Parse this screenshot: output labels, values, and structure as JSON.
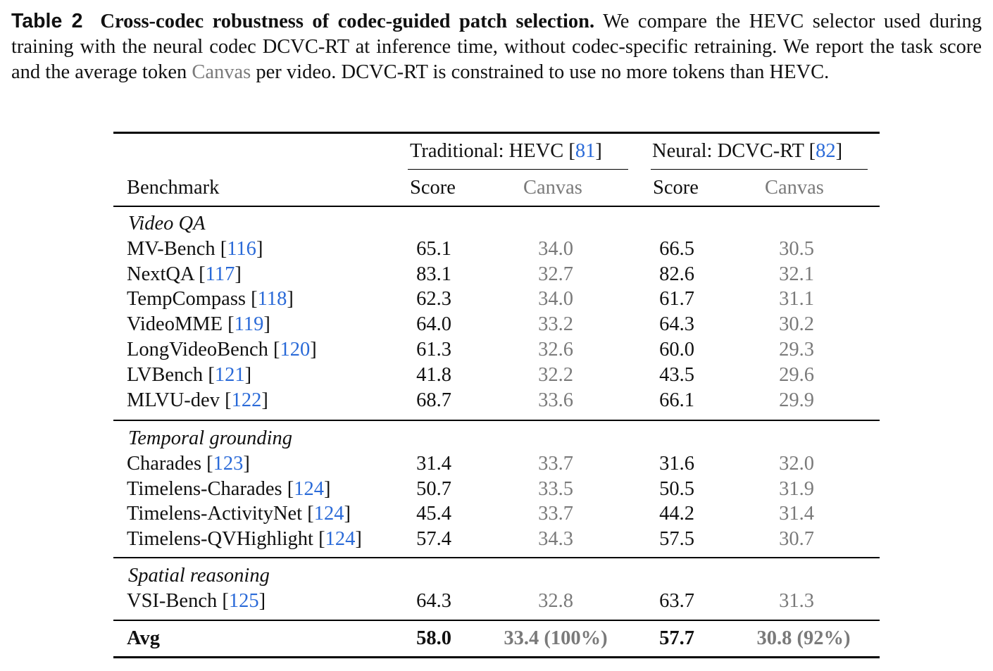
{
  "caption": {
    "label": "Table 2",
    "title": "Cross-codec robustness of codec-guided patch selection.",
    "text_1": " We compare the HEVC selector used during training with the neural codec DCVC-RT at inference time, without codec-specific retraining. We report the task score and the average token ",
    "text_gray": "Canvas",
    "text_2": " per video. DCVC-RT is constrained to use no more tokens than HEVC."
  },
  "table": {
    "group_hevc": {
      "prefix": "Traditional:  HEVC [",
      "ref": "81",
      "suffix": "]"
    },
    "group_dcvc": {
      "prefix": "Neural:  DCVC-RT [",
      "ref": "82",
      "suffix": "]"
    },
    "col_benchmark": "Benchmark",
    "col_score": "Score",
    "col_canvas": "Canvas",
    "sections": [
      {
        "title": "Video QA",
        "rows": [
          {
            "name": "MV-Bench",
            "ref": "116",
            "hevc_score": "65.1",
            "hevc_canvas": "34.0",
            "dcvc_score": "66.5",
            "dcvc_canvas": "30.5"
          },
          {
            "name": "NextQA",
            "ref": "117",
            "hevc_score": "83.1",
            "hevc_canvas": "32.7",
            "dcvc_score": "82.6",
            "dcvc_canvas": "32.1"
          },
          {
            "name": "TempCompass",
            "ref": "118",
            "hevc_score": "62.3",
            "hevc_canvas": "34.0",
            "dcvc_score": "61.7",
            "dcvc_canvas": "31.1"
          },
          {
            "name": "VideoMME",
            "ref": "119",
            "hevc_score": "64.0",
            "hevc_canvas": "33.2",
            "dcvc_score": "64.3",
            "dcvc_canvas": "30.2"
          },
          {
            "name": "LongVideoBench",
            "ref": "120",
            "hevc_score": "61.3",
            "hevc_canvas": "32.6",
            "dcvc_score": "60.0",
            "dcvc_canvas": "29.3"
          },
          {
            "name": "LVBench",
            "ref": "121",
            "hevc_score": "41.8",
            "hevc_canvas": "32.2",
            "dcvc_score": "43.5",
            "dcvc_canvas": "29.6"
          },
          {
            "name": "MLVU-dev",
            "ref": "122",
            "hevc_score": "68.7",
            "hevc_canvas": "33.6",
            "dcvc_score": "66.1",
            "dcvc_canvas": "29.9"
          }
        ]
      },
      {
        "title": "Temporal grounding",
        "rows": [
          {
            "name": "Charades",
            "ref": "123",
            "hevc_score": "31.4",
            "hevc_canvas": "33.7",
            "dcvc_score": "31.6",
            "dcvc_canvas": "32.0"
          },
          {
            "name": "Timelens-Charades",
            "ref": "124",
            "hevc_score": "50.7",
            "hevc_canvas": "33.5",
            "dcvc_score": "50.5",
            "dcvc_canvas": "31.9"
          },
          {
            "name": "Timelens-ActivityNet",
            "ref": "124",
            "hevc_score": "45.4",
            "hevc_canvas": "33.7",
            "dcvc_score": "44.2",
            "dcvc_canvas": "31.4"
          },
          {
            "name": "Timelens-QVHighlight",
            "ref": "124",
            "hevc_score": "57.4",
            "hevc_canvas": "34.3",
            "dcvc_score": "57.5",
            "dcvc_canvas": "30.7"
          }
        ]
      },
      {
        "title": "Spatial reasoning",
        "rows": [
          {
            "name": "VSI-Bench",
            "ref": "125",
            "hevc_score": "64.3",
            "hevc_canvas": "32.8",
            "dcvc_score": "63.7",
            "dcvc_canvas": "31.3"
          }
        ]
      }
    ],
    "avg": {
      "label": "Avg",
      "hevc_score": "58.0",
      "hevc_canvas": "33.4 (100%)",
      "dcvc_score": "57.7",
      "dcvc_canvas": "30.8 (92%)"
    }
  }
}
